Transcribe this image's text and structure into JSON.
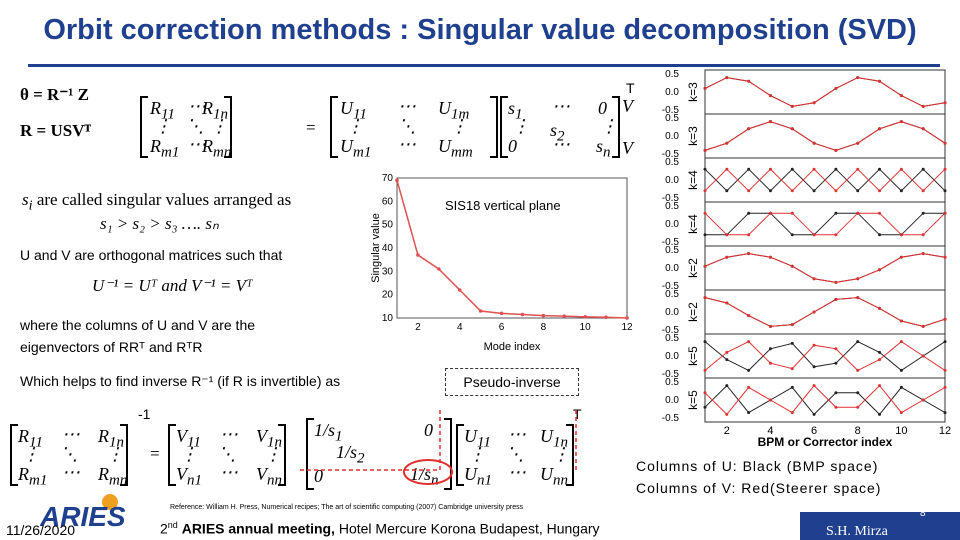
{
  "title": "Orbit correction methods : Singular value decomposition (SVD)",
  "eq1": "θ = R⁻¹ Z",
  "eq2": "R = USVᵀ",
  "sv_text_prefix": "are called singular values arranged as",
  "sv_order": "s₁ > s₂ > s₃ …. sₙ",
  "orth_text": "U and V are orthogonal matrices such that",
  "orth_eq": "U⁻¹ = Uᵀ and V⁻¹ = Vᵀ",
  "columns_text_1": "where the columns of U and V are the",
  "columns_text_2": "eigenvectors of RRᵀ and RᵀR",
  "inverse_text": "Which helps to find inverse R⁻¹ (if R is invertible) as",
  "pseudo_label": "Pseudo-inverse",
  "inv_superscript": "-1",
  "t_superscript": "T",
  "caption_1": "Columns of U: Black (BMP space)",
  "caption_2": "Columns of V: Red(Steerer space)",
  "reference": "Reference: William H. Press, Numerical recipes; The art of scientific computing (2007) Cambridge university press",
  "footer": {
    "date": "11/26/2020",
    "meeting_sup": "nd",
    "meeting_num": "2",
    "meeting_bold": "ARIES annual meeting,",
    "meeting_rest": "Hotel Mercure Korona Budapest, Hungary",
    "author": "S.H. Mirza",
    "page": "8",
    "logo": "ARIES"
  },
  "chart_data": [
    {
      "type": "line",
      "title": "SIS18 vertical plane",
      "xlabel": "Mode index",
      "ylabel": "Singular value",
      "x": [
        1,
        2,
        3,
        4,
        5,
        6,
        7,
        8,
        9,
        10,
        11,
        12
      ],
      "values": [
        69,
        37,
        31,
        22,
        13,
        12,
        11.5,
        11,
        10.8,
        10.5,
        10.3,
        10
      ],
      "xlim": [
        1,
        12
      ],
      "ylim": [
        10,
        70
      ],
      "xticks": [
        2,
        4,
        6,
        8,
        10,
        12
      ],
      "yticks": [
        10,
        20,
        30,
        40,
        50,
        60,
        70
      ],
      "color": "#e05050"
    },
    {
      "type": "line",
      "xlabel": "BPM or Corrector index",
      "xlim": [
        1,
        12
      ],
      "xticks": [
        2,
        4,
        6,
        8,
        10,
        12
      ],
      "ylim": [
        -0.5,
        0.5
      ],
      "yticks": [
        "0.5",
        "0.0",
        "-0.5"
      ],
      "panels": [
        {
          "label": "k=3",
          "black": [
            0.1,
            0.4,
            0.3,
            -0.1,
            -0.4,
            -0.3,
            0.1,
            0.4,
            0.3,
            -0.1,
            -0.4,
            -0.3
          ],
          "red": [
            0.1,
            0.4,
            0.3,
            -0.1,
            -0.4,
            -0.3,
            0.1,
            0.4,
            0.3,
            -0.1,
            -0.4,
            -0.3
          ]
        },
        {
          "label": "k=3",
          "black": [
            -0.4,
            -0.2,
            0.2,
            0.4,
            0.2,
            -0.2,
            -0.4,
            -0.2,
            0.2,
            0.4,
            0.2,
            -0.2
          ],
          "red": [
            -0.4,
            -0.2,
            0.2,
            0.4,
            0.2,
            -0.2,
            -0.4,
            -0.2,
            0.2,
            0.4,
            0.2,
            -0.2
          ]
        },
        {
          "label": "k=4",
          "black": [
            0.3,
            -0.3,
            0.3,
            -0.3,
            0.3,
            -0.3,
            0.3,
            -0.3,
            0.3,
            -0.3,
            0.3,
            -0.3
          ],
          "red": [
            -0.3,
            0.3,
            -0.3,
            0.3,
            -0.3,
            0.3,
            -0.3,
            0.3,
            -0.3,
            0.3,
            -0.3,
            0.3
          ]
        },
        {
          "label": "k=4",
          "black": [
            -0.3,
            -0.3,
            0.3,
            0.3,
            -0.3,
            -0.3,
            0.3,
            0.3,
            -0.3,
            -0.3,
            0.3,
            0.3
          ],
          "red": [
            0.3,
            -0.3,
            -0.3,
            0.3,
            0.3,
            -0.3,
            -0.3,
            0.3,
            0.3,
            -0.3,
            -0.3,
            0.3
          ]
        },
        {
          "label": "k=2",
          "black": [
            0.05,
            0.3,
            0.4,
            0.3,
            0.05,
            -0.3,
            -0.4,
            -0.3,
            -0.05,
            0.3,
            0.4,
            0.3
          ],
          "red": [
            0.05,
            0.3,
            0.4,
            0.3,
            0.05,
            -0.3,
            -0.4,
            -0.3,
            -0.05,
            0.3,
            0.4,
            0.3
          ]
        },
        {
          "label": "k=2",
          "black": [
            0.4,
            0.25,
            -0.1,
            -0.4,
            -0.35,
            0.0,
            0.35,
            0.4,
            0.1,
            -0.25,
            -0.4,
            -0.2
          ],
          "red": [
            0.4,
            0.25,
            -0.1,
            -0.4,
            -0.35,
            0.0,
            0.35,
            0.4,
            0.1,
            -0.25,
            -0.4,
            -0.2
          ]
        },
        {
          "label": "k=5",
          "black": [
            0.4,
            -0.1,
            -0.4,
            0.2,
            0.35,
            -0.3,
            -0.2,
            0.4,
            0.1,
            -0.4,
            0.0,
            0.4
          ],
          "red": [
            -0.4,
            0.1,
            0.4,
            -0.2,
            -0.35,
            0.3,
            0.2,
            -0.4,
            -0.1,
            0.4,
            0.0,
            -0.4
          ]
        },
        {
          "label": "k=5",
          "black": [
            -0.2,
            0.4,
            -0.35,
            0.0,
            0.35,
            -0.4,
            0.2,
            0.2,
            -0.4,
            0.35,
            0.0,
            -0.35
          ],
          "red": [
            0.2,
            -0.4,
            0.35,
            0.0,
            -0.35,
            0.4,
            -0.2,
            -0.2,
            0.4,
            -0.35,
            0.0,
            0.35
          ]
        }
      ]
    }
  ]
}
